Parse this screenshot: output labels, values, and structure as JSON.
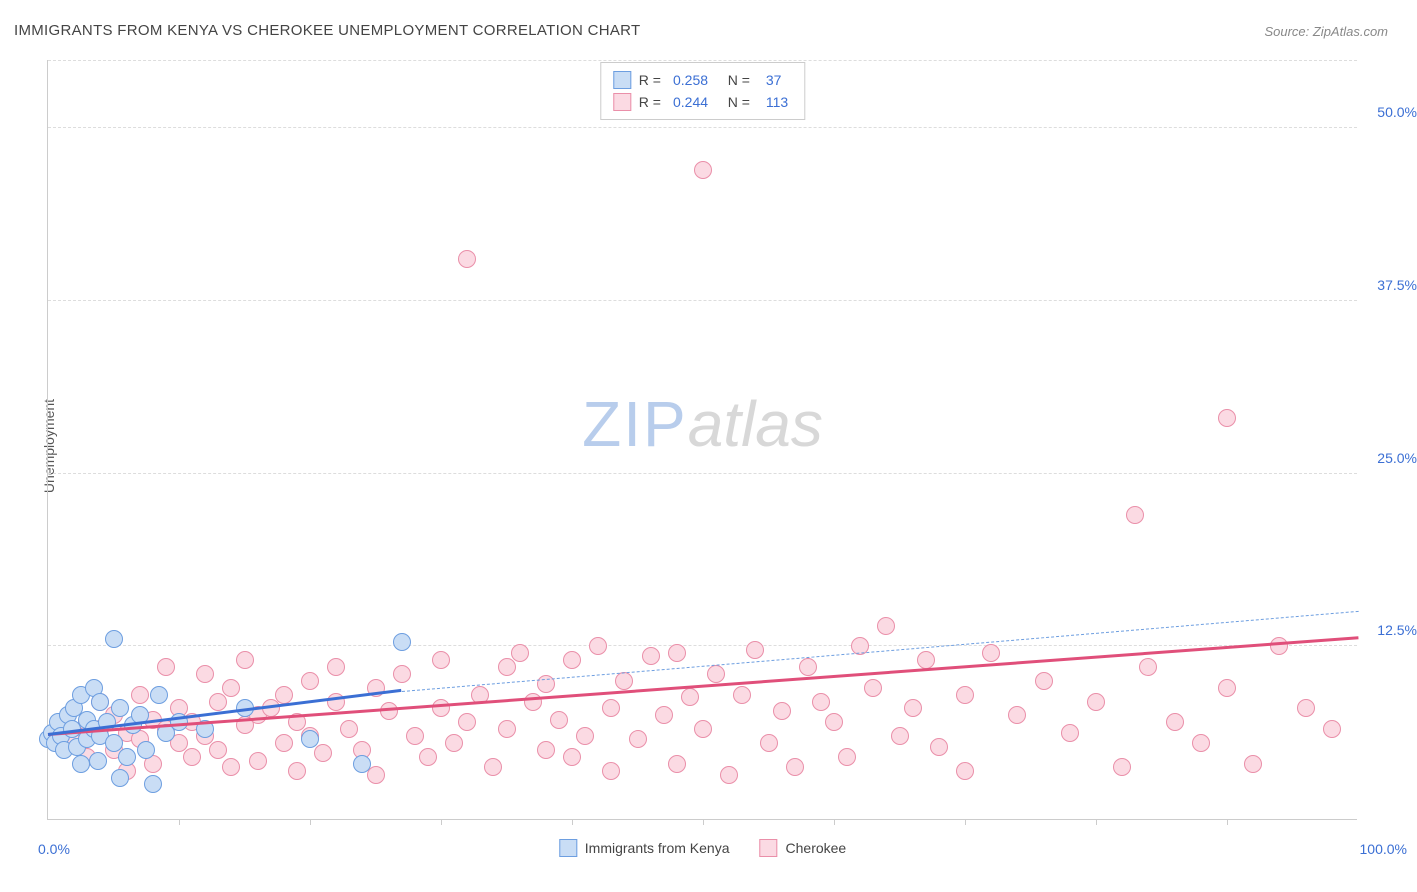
{
  "title": "IMMIGRANTS FROM KENYA VS CHEROKEE UNEMPLOYMENT CORRELATION CHART",
  "source_label": "Source: ZipAtlas.com",
  "ylabel": "Unemployment",
  "watermark": {
    "part1": "ZIP",
    "part2": "atlas"
  },
  "chart": {
    "type": "scatter",
    "background_color": "#ffffff",
    "grid_color": "#dddddd",
    "axis_line_color": "#cccccc",
    "xlim": [
      0,
      100
    ],
    "ylim": [
      0,
      55
    ],
    "xtick_step": 10,
    "ytick_positions": [
      12.5,
      25.0,
      37.5,
      50.0
    ],
    "ytick_labels": [
      "12.5%",
      "25.0%",
      "37.5%",
      "50.0%"
    ],
    "ytick_color": "#3b6fd4",
    "x_min_label": "0.0%",
    "x_max_label": "100.0%",
    "x_label_color": "#3b6fd4",
    "marker_radius": 9,
    "marker_stroke_width": 1.5,
    "series": [
      {
        "name": "Immigrants from Kenya",
        "fill": "#c9ddf5",
        "stroke": "#6d9ee0",
        "R": "0.258",
        "N": "37",
        "trend": {
          "x1": 0,
          "y1": 6.0,
          "x2": 27,
          "y2": 9.2,
          "color": "#3b6fd4",
          "width": 3
        },
        "trend_extrapolated": {
          "x1": 27,
          "y1": 9.2,
          "x2": 100,
          "y2": 15.0,
          "color": "#6d9ee0",
          "width": 1.5
        },
        "points": [
          [
            0,
            5.8
          ],
          [
            0.3,
            6.2
          ],
          [
            0.5,
            5.5
          ],
          [
            0.8,
            7.0
          ],
          [
            1,
            6.0
          ],
          [
            1.2,
            5.0
          ],
          [
            1.5,
            7.5
          ],
          [
            1.8,
            6.5
          ],
          [
            2,
            8.0
          ],
          [
            2.2,
            5.2
          ],
          [
            2.5,
            4.0
          ],
          [
            2.5,
            9.0
          ],
          [
            3,
            7.2
          ],
          [
            3,
            5.8
          ],
          [
            3.5,
            6.5
          ],
          [
            3.5,
            9.5
          ],
          [
            3.8,
            4.2
          ],
          [
            4,
            6.0
          ],
          [
            4,
            8.5
          ],
          [
            4.5,
            7.0
          ],
          [
            5,
            13.0
          ],
          [
            5,
            5.5
          ],
          [
            5.5,
            8.0
          ],
          [
            5.5,
            3.0
          ],
          [
            6,
            4.5
          ],
          [
            6.5,
            6.8
          ],
          [
            7,
            7.5
          ],
          [
            7.5,
            5.0
          ],
          [
            8,
            2.5
          ],
          [
            8.5,
            9.0
          ],
          [
            9,
            6.2
          ],
          [
            10,
            7.0
          ],
          [
            12,
            6.5
          ],
          [
            15,
            8.0
          ],
          [
            20,
            5.8
          ],
          [
            24,
            4.0
          ],
          [
            27,
            12.8
          ]
        ]
      },
      {
        "name": "Cherokee",
        "fill": "#fbdae3",
        "stroke": "#ea8fa9",
        "R": "0.244",
        "N": "113",
        "trend": {
          "x1": 0,
          "y1": 6.0,
          "x2": 100,
          "y2": 13.0,
          "color": "#e04f7a",
          "width": 3
        },
        "points": [
          [
            1,
            6.0
          ],
          [
            2,
            5.5
          ],
          [
            3,
            7.0
          ],
          [
            3,
            4.5
          ],
          [
            4,
            6.5
          ],
          [
            4,
            8.5
          ],
          [
            5,
            5.0
          ],
          [
            5,
            7.5
          ],
          [
            6,
            6.2
          ],
          [
            6,
            3.5
          ],
          [
            7,
            9.0
          ],
          [
            7,
            5.8
          ],
          [
            8,
            7.2
          ],
          [
            8,
            4.0
          ],
          [
            9,
            11.0
          ],
          [
            9,
            6.5
          ],
          [
            10,
            5.5
          ],
          [
            10,
            8.0
          ],
          [
            11,
            7.0
          ],
          [
            11,
            4.5
          ],
          [
            12,
            10.5
          ],
          [
            12,
            6.0
          ],
          [
            13,
            8.5
          ],
          [
            13,
            5.0
          ],
          [
            14,
            9.5
          ],
          [
            14,
            3.8
          ],
          [
            15,
            11.5
          ],
          [
            15,
            6.8
          ],
          [
            16,
            7.5
          ],
          [
            16,
            4.2
          ],
          [
            17,
            8.0
          ],
          [
            18,
            5.5
          ],
          [
            18,
            9.0
          ],
          [
            19,
            3.5
          ],
          [
            19,
            7.0
          ],
          [
            20,
            6.0
          ],
          [
            20,
            10.0
          ],
          [
            21,
            4.8
          ],
          [
            22,
            8.5
          ],
          [
            22,
            11.0
          ],
          [
            23,
            6.5
          ],
          [
            24,
            5.0
          ],
          [
            25,
            9.5
          ],
          [
            25,
            3.2
          ],
          [
            26,
            7.8
          ],
          [
            27,
            10.5
          ],
          [
            28,
            6.0
          ],
          [
            29,
            4.5
          ],
          [
            30,
            8.0
          ],
          [
            30,
            11.5
          ],
          [
            31,
            5.5
          ],
          [
            32,
            40.5
          ],
          [
            32,
            7.0
          ],
          [
            33,
            9.0
          ],
          [
            34,
            3.8
          ],
          [
            35,
            11.0
          ],
          [
            35,
            6.5
          ],
          [
            36,
            12.0
          ],
          [
            37,
            8.5
          ],
          [
            38,
            5.0
          ],
          [
            38,
            9.8
          ],
          [
            39,
            7.2
          ],
          [
            40,
            4.5
          ],
          [
            40,
            11.5
          ],
          [
            41,
            6.0
          ],
          [
            42,
            12.5
          ],
          [
            43,
            3.5
          ],
          [
            43,
            8.0
          ],
          [
            44,
            10.0
          ],
          [
            45,
            5.8
          ],
          [
            46,
            11.8
          ],
          [
            47,
            7.5
          ],
          [
            48,
            4.0
          ],
          [
            48,
            12.0
          ],
          [
            49,
            8.8
          ],
          [
            50,
            47.0
          ],
          [
            50,
            6.5
          ],
          [
            51,
            10.5
          ],
          [
            52,
            3.2
          ],
          [
            53,
            9.0
          ],
          [
            54,
            12.2
          ],
          [
            55,
            5.5
          ],
          [
            56,
            7.8
          ],
          [
            57,
            3.8
          ],
          [
            58,
            11.0
          ],
          [
            59,
            8.5
          ],
          [
            60,
            7.0
          ],
          [
            61,
            4.5
          ],
          [
            62,
            12.5
          ],
          [
            63,
            9.5
          ],
          [
            64,
            14.0
          ],
          [
            65,
            6.0
          ],
          [
            66,
            8.0
          ],
          [
            67,
            11.5
          ],
          [
            68,
            5.2
          ],
          [
            70,
            3.5
          ],
          [
            70,
            9.0
          ],
          [
            72,
            12.0
          ],
          [
            74,
            7.5
          ],
          [
            76,
            10.0
          ],
          [
            78,
            6.2
          ],
          [
            80,
            8.5
          ],
          [
            82,
            3.8
          ],
          [
            83,
            22.0
          ],
          [
            84,
            11.0
          ],
          [
            86,
            7.0
          ],
          [
            88,
            5.5
          ],
          [
            90,
            9.5
          ],
          [
            90,
            29.0
          ],
          [
            92,
            4.0
          ],
          [
            94,
            12.5
          ],
          [
            96,
            8.0
          ],
          [
            98,
            6.5
          ]
        ]
      }
    ]
  },
  "legend_bottom": [
    {
      "label": "Immigrants from Kenya",
      "fill": "#c9ddf5",
      "stroke": "#6d9ee0"
    },
    {
      "label": "Cherokee",
      "fill": "#fbdae3",
      "stroke": "#ea8fa9"
    }
  ]
}
